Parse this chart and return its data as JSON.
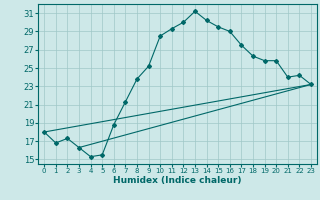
{
  "title": "",
  "xlabel": "Humidex (Indice chaleur)",
  "xlim": [
    -0.5,
    23.5
  ],
  "ylim": [
    14.5,
    32
  ],
  "xticks": [
    0,
    1,
    2,
    3,
    4,
    5,
    6,
    7,
    8,
    9,
    10,
    11,
    12,
    13,
    14,
    15,
    16,
    17,
    18,
    19,
    20,
    21,
    22,
    23
  ],
  "yticks": [
    15,
    17,
    19,
    21,
    23,
    25,
    27,
    29,
    31
  ],
  "bg_color": "#cde8e8",
  "grid_color": "#a0c8c8",
  "line_color": "#006868",
  "curve1_x": [
    0,
    1,
    2,
    3,
    4,
    5,
    6,
    7,
    8,
    9,
    10,
    11,
    12,
    13,
    14,
    15,
    16,
    17,
    18,
    19,
    20,
    21,
    22,
    23
  ],
  "curve1_y": [
    18.0,
    16.8,
    17.3,
    16.3,
    15.3,
    15.5,
    18.8,
    21.3,
    23.8,
    25.2,
    28.5,
    29.3,
    30.0,
    31.2,
    30.2,
    29.5,
    29.0,
    27.5,
    26.3,
    25.8,
    25.8,
    24.0,
    24.2,
    23.2
  ],
  "line2_x": [
    0,
    23
  ],
  "line2_y": [
    18.0,
    23.2
  ],
  "line3_x": [
    3,
    23
  ],
  "line3_y": [
    16.3,
    23.2
  ]
}
